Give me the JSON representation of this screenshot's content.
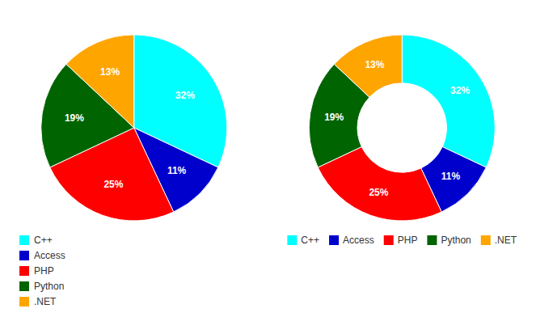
{
  "chart_data": [
    {
      "type": "pie",
      "categories": [
        "C++",
        "Access",
        "PHP",
        "Python",
        ".NET"
      ],
      "values": [
        32,
        11,
        25,
        19,
        13
      ],
      "value_labels": [
        "32%",
        "11%",
        "25%",
        "19%",
        "13%"
      ],
      "colors": [
        "#00FFFF",
        "#0000CD",
        "#FF0000",
        "#006400",
        "#FFA500"
      ],
      "data_labels": true,
      "legend": "lower left"
    },
    {
      "type": "donut",
      "categories": [
        "C++",
        "Access",
        "PHP",
        "Python",
        ".NET"
      ],
      "values": [
        32,
        11,
        25,
        19,
        13
      ],
      "value_labels": [
        "32%",
        "11%",
        "25%",
        "19%",
        "13%"
      ],
      "colors": [
        "#00FFFF",
        "#0000CD",
        "#FF0000",
        "#006400",
        "#FFA500"
      ],
      "data_labels": true,
      "legend": "lower center"
    }
  ]
}
